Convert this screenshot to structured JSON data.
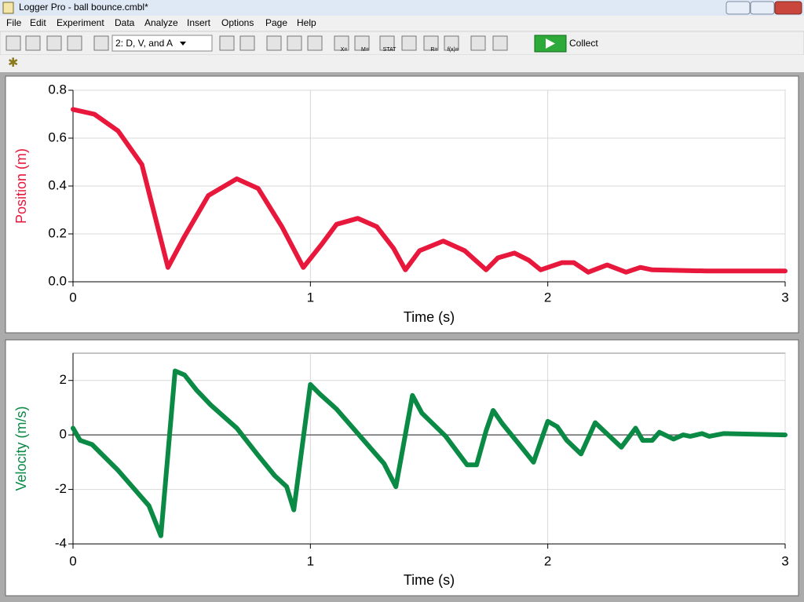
{
  "window": {
    "title": "Logger Pro - ball bounce.cmbl*"
  },
  "menu": [
    "File",
    "Edit",
    "Experiment",
    "Data",
    "Analyze",
    "Insert",
    "Options",
    "Page",
    "Help"
  ],
  "toolbar": {
    "page_selector": "2: D, V, and A",
    "icon_labels": [
      "X=",
      "M=",
      "STAT",
      "R=",
      "f(x)="
    ],
    "collect": "Collect"
  },
  "chart_data": [
    {
      "type": "line",
      "xlabel": "Time (s)",
      "ylabel": "Position (m)",
      "color": "#e8173c",
      "grid": true,
      "xlim": [
        0,
        3
      ],
      "xticks": [
        0,
        1,
        2,
        3
      ],
      "ylim": [
        0,
        0.8
      ],
      "yticks": [
        {
          "value": 0,
          "label": "0.0"
        },
        0.2,
        0.4,
        0.6,
        0.8
      ],
      "x": [
        0,
        0.09,
        0.19,
        0.29,
        0.4,
        0.47,
        0.57,
        0.69,
        0.78,
        0.88,
        0.97,
        1.05,
        1.11,
        1.2,
        1.28,
        1.35,
        1.4,
        1.46,
        1.56,
        1.65,
        1.74,
        1.79,
        1.86,
        1.92,
        1.97,
        2.06,
        2.11,
        2.17,
        2.25,
        2.33,
        2.39,
        2.44,
        2.67,
        3.0
      ],
      "values": [
        0.72,
        0.7,
        0.63,
        0.49,
        0.06,
        0.19,
        0.36,
        0.43,
        0.39,
        0.23,
        0.06,
        0.16,
        0.24,
        0.265,
        0.23,
        0.14,
        0.05,
        0.13,
        0.17,
        0.13,
        0.05,
        0.1,
        0.12,
        0.09,
        0.05,
        0.08,
        0.08,
        0.04,
        0.07,
        0.04,
        0.06,
        0.05,
        0.045,
        0.045
      ]
    },
    {
      "type": "line",
      "xlabel": "Time (s)",
      "ylabel": "Velocity (m/s)",
      "color": "#0a8a44",
      "grid": true,
      "xlim": [
        0,
        3
      ],
      "xticks": [
        0,
        1,
        2,
        3
      ],
      "ylim": [
        -4,
        3
      ],
      "yticks": [
        -4,
        -2,
        0,
        2
      ],
      "x": [
        0,
        0.03,
        0.08,
        0.19,
        0.32,
        0.37,
        0.43,
        0.47,
        0.52,
        0.58,
        0.69,
        0.78,
        0.85,
        0.9,
        0.93,
        1.0,
        1.04,
        1.11,
        1.21,
        1.31,
        1.36,
        1.43,
        1.47,
        1.57,
        1.66,
        1.7,
        1.74,
        1.77,
        1.81,
        1.88,
        1.94,
        2.0,
        2.04,
        2.08,
        2.14,
        2.2,
        2.23,
        2.31,
        2.37,
        2.4,
        2.44,
        2.47,
        2.53,
        2.57,
        2.6,
        2.65,
        2.68,
        2.74,
        3.0
      ],
      "values": [
        0.25,
        -0.2,
        -0.35,
        -1.3,
        -2.6,
        -3.7,
        2.35,
        2.2,
        1.65,
        1.1,
        0.25,
        -0.75,
        -1.5,
        -1.9,
        -2.75,
        1.85,
        1.5,
        0.95,
        -0.05,
        -1.05,
        -1.9,
        1.45,
        0.8,
        -0.05,
        -1.1,
        -1.1,
        0.15,
        0.9,
        0.4,
        -0.35,
        -1.0,
        0.5,
        0.3,
        -0.2,
        -0.7,
        0.45,
        0.2,
        -0.45,
        0.25,
        -0.2,
        -0.2,
        0.1,
        -0.15,
        0,
        -0.05,
        0.05,
        -0.05,
        0.05,
        0
      ]
    }
  ]
}
